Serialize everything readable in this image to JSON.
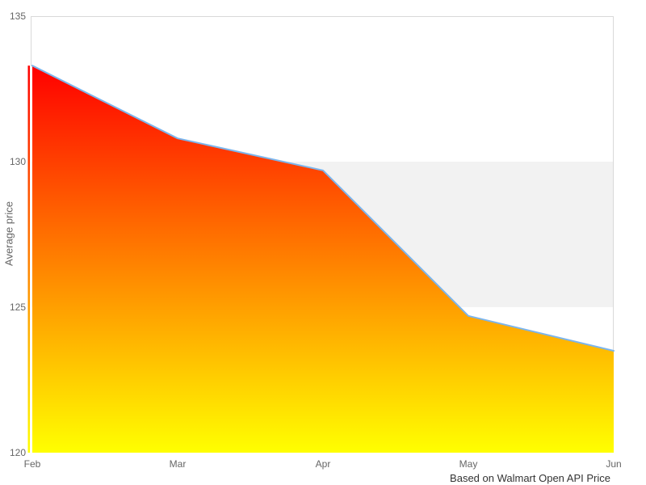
{
  "chart_data": {
    "type": "area",
    "title": "",
    "categories": [
      "Feb",
      "Mar",
      "Apr",
      "May",
      "Jun"
    ],
    "series": [
      {
        "name": "Average price",
        "values": [
          133.3,
          130.8,
          129.7,
          124.7,
          123.5
        ]
      }
    ],
    "xlabel": "",
    "ylabel": "Average price",
    "ylim": [
      120,
      135
    ],
    "yticks": [
      120,
      125,
      130,
      135
    ],
    "grid": false,
    "legend_position": "none",
    "plot_band": {
      "from": 125,
      "to": 130,
      "color": "#f2f2f2"
    },
    "caption": "Based on Walmart Open API Price",
    "style": {
      "line_color": "#7cb5ec",
      "gradient_top": "#ff0000",
      "gradient_bottom": "#ffff00",
      "border_color": "#d9d9d9",
      "plot_background": "#ffffff",
      "tick_label_color": "#666666",
      "axis_title_color": "#666666",
      "caption_color": "#333333"
    }
  }
}
